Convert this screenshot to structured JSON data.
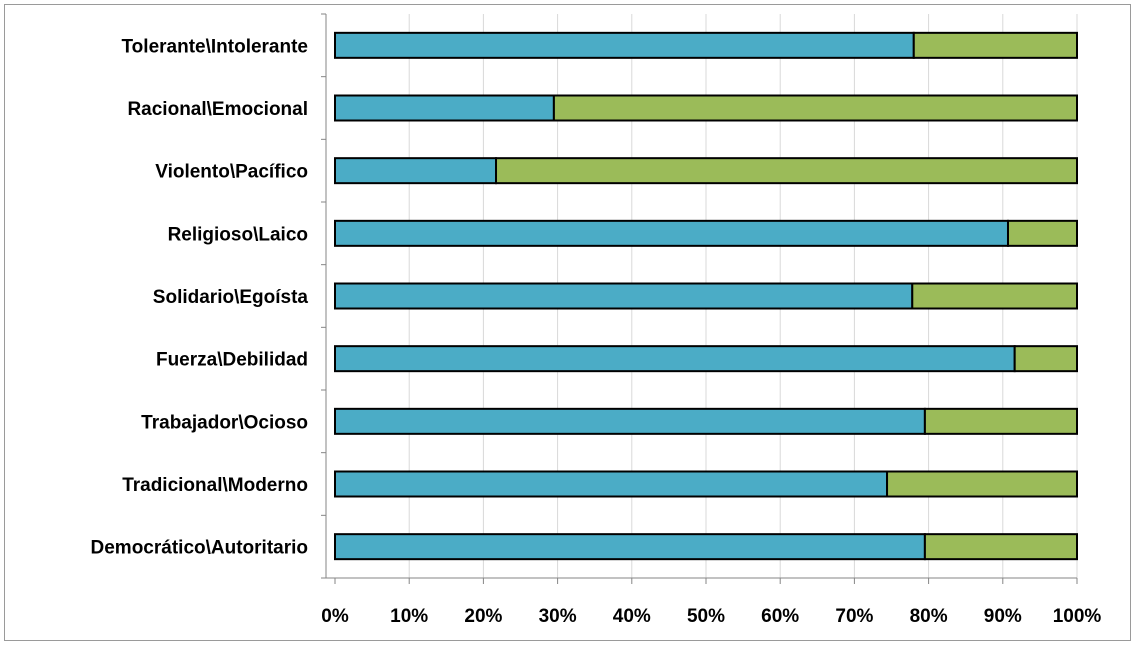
{
  "chart_data": {
    "type": "bar",
    "orientation": "horizontal",
    "stacked": "percent",
    "title": "",
    "xlabel": "",
    "ylabel": "",
    "xlim": [
      0,
      100
    ],
    "x_ticks": [
      "0%",
      "10%",
      "20%",
      "30%",
      "40%",
      "50%",
      "60%",
      "70%",
      "80%",
      "90%",
      "100%"
    ],
    "categories": [
      "Tolerante\\Intolerante",
      "Racional\\Emocional",
      "Violento\\Pacífico",
      "Religioso\\Laico",
      "Solidario\\Egoísta",
      "Fuerza\\Debilidad",
      "Trabajador\\Ocioso",
      "Tradicional\\Moderno",
      "Democrático\\Autoritario"
    ],
    "series": [
      {
        "color": "#4bacc6",
        "values": [
          78,
          29.5,
          21.7,
          90.7,
          77.8,
          91.6,
          79.5,
          74.4,
          79.5
        ]
      },
      {
        "color": "#9bbb59",
        "values": [
          22,
          70.5,
          78.3,
          9.3,
          22.2,
          8.4,
          20.5,
          25.6,
          20.5
        ]
      }
    ],
    "grid": true,
    "legend": "none",
    "colors": {
      "gridline": "#d9d9d9",
      "axis": "#868686",
      "bar_border": "#000000"
    }
  }
}
